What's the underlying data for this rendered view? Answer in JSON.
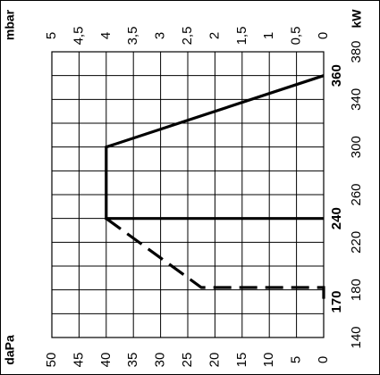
{
  "chart_data": {
    "type": "line",
    "title": "",
    "x_axis": {
      "quantity_label": "kW",
      "range": [
        140,
        380
      ],
      "ticks": [
        "140",
        "160",
        "180",
        "200",
        "220",
        "240",
        "260",
        "280",
        "300",
        "320",
        "340",
        "360",
        "380"
      ],
      "tick_labels": [
        "140",
        "180",
        "220",
        "260",
        "300",
        "340",
        "380"
      ]
    },
    "y_axis_top": {
      "unit": "mbar",
      "range": [
        0,
        5
      ],
      "tick_labels": [
        "0",
        "0,5",
        "1",
        "1,5",
        "2",
        "2,5",
        "3",
        "3,5",
        "4",
        "4,5",
        "5"
      ]
    },
    "y_axis_bottom": {
      "unit": "daPa",
      "range": [
        0,
        50
      ],
      "tick_labels": [
        "0",
        "5",
        "10",
        "15",
        "20",
        "25",
        "30",
        "35",
        "40",
        "45",
        "50"
      ]
    },
    "marked_values": [
      "170",
      "240",
      "360"
    ],
    "series": [
      {
        "style": "solid",
        "points": [
          [
            240,
            0
          ],
          [
            240,
            4
          ],
          [
            300,
            4
          ],
          [
            360,
            0
          ]
        ]
      },
      {
        "style": "dashed",
        "points": [
          [
            240,
            4
          ],
          [
            182,
            2.25
          ],
          [
            182,
            0
          ],
          [
            170,
            0
          ]
        ]
      }
    ],
    "grid": true
  }
}
